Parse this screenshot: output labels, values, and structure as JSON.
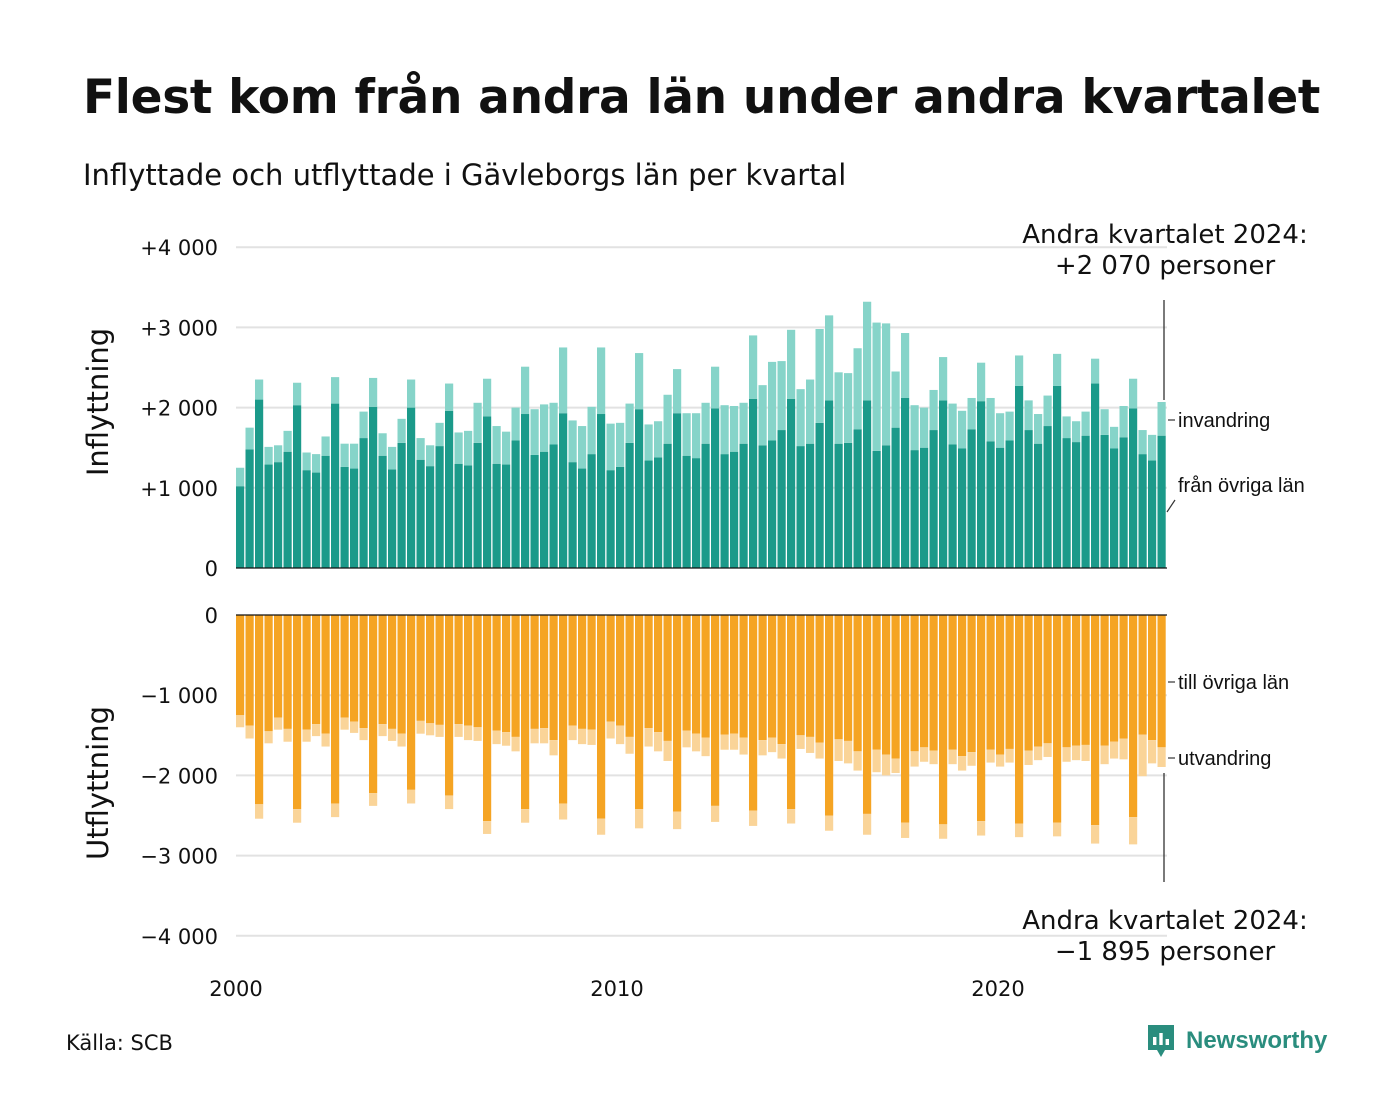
{
  "header": {
    "title": "Flest kom från andra län under andra kvartalet",
    "subtitle": "Inflyttade och utflyttade i Gävleborgs län per kvartal"
  },
  "footer": {
    "source": "Källa: SCB",
    "brand": "Newsworthy"
  },
  "colors": {
    "in_region": "#1b9a8a",
    "in_immigration": "#86d4c9",
    "out_region": "#f5a423",
    "out_emigration": "#fad498",
    "grid": "#e2e2e2",
    "brand": "#2a8d7e"
  },
  "chart_data": {
    "type": "bar",
    "stacked": true,
    "x_start": 2000,
    "x_tick_labels": [
      "2000",
      "2010",
      "2020"
    ],
    "panels": [
      {
        "name": "inflyttning",
        "ylabel": "Inflyttning",
        "ylim": [
          0,
          4000
        ],
        "y_tick_labels": [
          "0",
          "+1 000",
          "+2 000",
          "+3 000",
          "+4 000"
        ],
        "series": [
          {
            "name": "från övriga län",
            "values": [
              1020,
              1480,
              2100,
              1290,
              1320,
              1450,
              2030,
              1220,
              1190,
              1400,
              2050,
              1260,
              1240,
              1620,
              2010,
              1400,
              1230,
              1560,
              2000,
              1350,
              1270,
              1520,
              1960,
              1300,
              1280,
              1560,
              1890,
              1300,
              1290,
              1590,
              1920,
              1410,
              1450,
              1540,
              1930,
              1320,
              1240,
              1420,
              1920,
              1220,
              1260,
              1560,
              1980,
              1340,
              1380,
              1550,
              1930,
              1400,
              1370,
              1550,
              1990,
              1420,
              1450,
              1550,
              2110,
              1530,
              1590,
              1720,
              2110,
              1520,
              1550,
              1810,
              2090,
              1550,
              1560,
              1730,
              2090,
              1460,
              1530,
              1750,
              2120,
              1470,
              1500,
              1720,
              2090,
              1540,
              1490,
              1730,
              2080,
              1580,
              1500,
              1590,
              2270,
              1720,
              1550,
              1770,
              2270,
              1620,
              1570,
              1650,
              2300,
              1660,
              1490,
              1630,
              1990,
              1420,
              1340,
              1650
            ],
            "color_key": "in_region"
          },
          {
            "name": "invandring",
            "values": [
              230,
              270,
              250,
              220,
              210,
              260,
              280,
              220,
              230,
              240,
              330,
              290,
              310,
              330,
              360,
              280,
              280,
              300,
              350,
              270,
              260,
              290,
              340,
              390,
              430,
              500,
              470,
              470,
              410,
              410,
              590,
              570,
              590,
              520,
              820,
              520,
              530,
              590,
              830,
              580,
              550,
              490,
              700,
              450,
              450,
              610,
              550,
              530,
              560,
              510,
              520,
              610,
              570,
              510,
              790,
              750,
              980,
              860,
              860,
              710,
              800,
              1170,
              1060,
              890,
              870,
              1010,
              1230,
              1600,
              1520,
              700,
              810,
              560,
              500,
              500,
              540,
              510,
              470,
              390,
              480,
              540,
              430,
              360,
              380,
              370,
              370,
              380,
              400,
              270,
              260,
              300,
              310,
              320,
              270,
              390,
              370,
              300,
              320,
              420
            ],
            "color_key": "in_immigration"
          }
        ],
        "annotation": [
          "Andra kvartalet 2024:",
          "+2 070 personer"
        ],
        "series_labels": [
          "invandring",
          "från övriga län"
        ]
      },
      {
        "name": "utflyttning",
        "ylabel": "Utflyttning",
        "ylim": [
          -4000,
          0
        ],
        "y_tick_labels": [
          "0",
          "−1 000",
          "−2 000",
          "−3 000",
          "−4 000"
        ],
        "series": [
          {
            "name": "till övriga län",
            "values": [
              -1250,
              -1380,
              -2360,
              -1450,
              -1280,
              -1420,
              -2420,
              -1430,
              -1360,
              -1480,
              -2350,
              -1280,
              -1330,
              -1410,
              -2220,
              -1360,
              -1420,
              -1480,
              -2180,
              -1320,
              -1350,
              -1370,
              -2250,
              -1360,
              -1380,
              -1400,
              -2570,
              -1440,
              -1460,
              -1520,
              -2420,
              -1420,
              -1410,
              -1560,
              -2350,
              -1380,
              -1420,
              -1430,
              -2540,
              -1330,
              -1380,
              -1520,
              -2420,
              -1410,
              -1460,
              -1570,
              -2450,
              -1440,
              -1480,
              -1530,
              -2380,
              -1490,
              -1480,
              -1530,
              -2440,
              -1560,
              -1530,
              -1610,
              -2420,
              -1500,
              -1520,
              -1590,
              -2500,
              -1550,
              -1570,
              -1700,
              -2480,
              -1680,
              -1740,
              -1790,
              -2590,
              -1700,
              -1650,
              -1690,
              -2610,
              -1680,
              -1760,
              -1710,
              -2570,
              -1680,
              -1740,
              -1670,
              -2600,
              -1690,
              -1640,
              -1600,
              -2590,
              -1650,
              -1630,
              -1620,
              -2620,
              -1630,
              -1580,
              -1540,
              -2520,
              -1490,
              -1560,
              -1650
            ],
            "color_key": "out_region"
          },
          {
            "name": "utvandring",
            "values": [
              -150,
              -160,
              -180,
              -150,
              -150,
              -160,
              -170,
              -150,
              -150,
              -160,
              -170,
              -150,
              -140,
              -150,
              -160,
              -150,
              -150,
              -160,
              -170,
              -160,
              -150,
              -150,
              -170,
              -160,
              -180,
              -170,
              -160,
              -170,
              -170,
              -180,
              -170,
              -180,
              -190,
              -190,
              -200,
              -180,
              -190,
              -190,
              -200,
              -210,
              -230,
              -210,
              -240,
              -230,
              -240,
              -250,
              -220,
              -210,
              -220,
              -230,
              -200,
              -190,
              -200,
              -210,
              -190,
              -190,
              -180,
              -180,
              -180,
              -170,
              -200,
              -200,
              -190,
              -270,
              -280,
              -240,
              -260,
              -280,
              -260,
              -180,
              -190,
              -190,
              -180,
              -170,
              -180,
              -180,
              -180,
              -170,
              -180,
              -160,
              -150,
              -170,
              -170,
              -180,
              -170,
              -170,
              -170,
              -180,
              -180,
              -200,
              -230,
              -230,
              -210,
              -260,
              -340,
              -520,
              -290,
              -245
            ],
            "color_key": "out_emigration"
          }
        ],
        "annotation": [
          "Andra kvartalet 2024:",
          "−1 895 personer"
        ],
        "series_labels": [
          "till övriga län",
          "utvandring"
        ]
      }
    ]
  }
}
